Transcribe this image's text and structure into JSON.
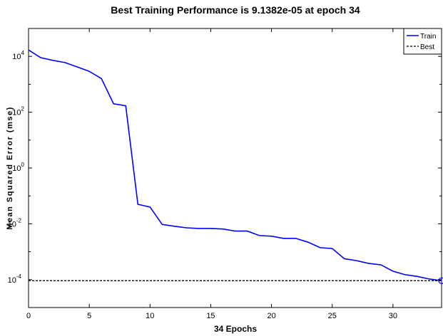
{
  "chart_data": {
    "type": "line",
    "title": "Best Training Performance is 9.1382e-05 at epoch 34",
    "xlabel": "34 Epochs",
    "ylabel": "Mean Squared Error  (mse)",
    "xlim": [
      0,
      34
    ],
    "xticks": [
      0,
      5,
      10,
      15,
      20,
      25,
      30
    ],
    "yscale": "log",
    "ylim_exponent": [
      -5,
      5
    ],
    "ytick_exponents": [
      -4,
      -2,
      0,
      2,
      4
    ],
    "ytick_labels": [
      {
        "base": "10",
        "exp": "-4"
      },
      {
        "base": "10",
        "exp": "-2"
      },
      {
        "base": "10",
        "exp": "0"
      },
      {
        "base": "10",
        "exp": "2"
      },
      {
        "base": "10",
        "exp": "4"
      }
    ],
    "grid": false,
    "legend_position": "top-right",
    "series": [
      {
        "name": "Train",
        "color": "#0000ff",
        "style": "solid",
        "x": [
          0,
          1,
          2,
          3,
          4,
          5,
          6,
          7,
          8,
          9,
          10,
          11,
          12,
          13,
          14,
          15,
          16,
          17,
          18,
          19,
          20,
          21,
          22,
          23,
          24,
          25,
          26,
          27,
          28,
          29,
          30,
          31,
          32,
          33,
          34
        ],
        "y": [
          17000,
          9000,
          7200,
          6000,
          4200,
          2900,
          1600,
          200,
          170,
          0.05,
          0.04,
          0.0095,
          0.0082,
          0.0072,
          0.0068,
          0.0068,
          0.0065,
          0.0055,
          0.0055,
          0.0038,
          0.0036,
          0.003,
          0.003,
          0.0022,
          0.0014,
          0.0013,
          0.00056,
          0.00048,
          0.00038,
          0.00034,
          0.0002,
          0.00015,
          0.00013,
          0.000105,
          9.1382e-05
        ]
      },
      {
        "name": "Best",
        "color": "#000000",
        "style": "dashed",
        "x": [
          0,
          34
        ],
        "y": [
          9.1382e-05,
          9.1382e-05
        ]
      }
    ],
    "best_point": {
      "x": 34,
      "y": 9.1382e-05,
      "marker": "circle",
      "color": "#0000ff"
    }
  }
}
